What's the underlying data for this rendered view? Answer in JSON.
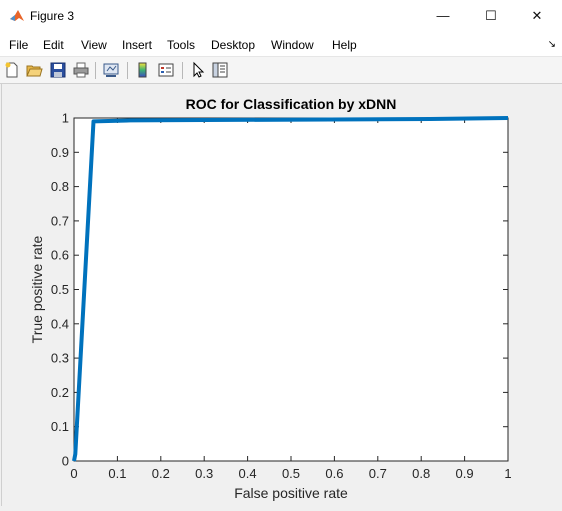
{
  "window": {
    "title": "Figure 3"
  },
  "window_controls": {
    "minimize": "—",
    "maximize": "☐",
    "close": "✕"
  },
  "menu": [
    "File",
    "Edit",
    "View",
    "Insert",
    "Tools",
    "Desktop",
    "Window",
    "Help"
  ],
  "toolbar": {
    "buttons": [
      "new-figure-icon",
      "open-file-icon",
      "save-icon",
      "print-icon",
      "link-plot-icon",
      "insert-colorbar-icon",
      "insert-legend-icon",
      "pointer-icon",
      "property-inspector-icon"
    ]
  },
  "chart_data": {
    "type": "line",
    "title": "ROC for Classification by xDNN",
    "xlabel": "False positive rate",
    "ylabel": "True positive rate",
    "xlim": [
      0,
      1
    ],
    "ylim": [
      0,
      1
    ],
    "x_ticks": [
      "0",
      "0.1",
      "0.2",
      "0.3",
      "0.4",
      "0.5",
      "0.6",
      "0.7",
      "0.8",
      "0.9",
      "1"
    ],
    "y_ticks": [
      "0",
      "0.1",
      "0.2",
      "0.3",
      "0.4",
      "0.5",
      "0.6",
      "0.7",
      "0.8",
      "0.9",
      "1"
    ],
    "grid": false,
    "color": "#0072bd",
    "x": [
      0,
      0.003,
      0.045,
      0.13,
      0.47,
      0.82,
      1.0
    ],
    "y": [
      0,
      0.02,
      0.99,
      0.993,
      0.995,
      0.997,
      1.0
    ]
  }
}
